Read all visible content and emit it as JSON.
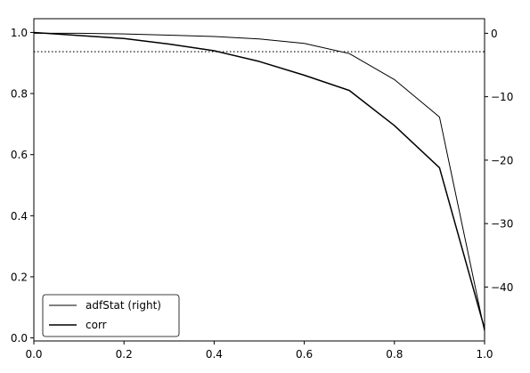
{
  "chart_data": {
    "type": "line",
    "x_axis": {
      "range": [
        0.0,
        1.0
      ],
      "ticks": [
        0.0,
        0.2,
        0.4,
        0.6,
        0.8,
        1.0
      ],
      "tick_labels": [
        "0.0",
        "0.2",
        "0.4",
        "0.6",
        "0.8",
        "1.0"
      ]
    },
    "y_left": {
      "range": [
        -0.01,
        1.045
      ],
      "ticks": [
        0.0,
        0.2,
        0.4,
        0.6,
        0.8,
        1.0
      ],
      "tick_labels": [
        "0.0",
        "0.2",
        "0.4",
        "0.6",
        "0.8",
        "1.0"
      ]
    },
    "y_right": {
      "range": [
        -48.5,
        2.3
      ],
      "ticks": [
        0,
        -10,
        -20,
        -30,
        -40
      ],
      "tick_labels": [
        "0",
        "−10",
        "−20",
        "−30",
        "−40"
      ]
    },
    "grid": false,
    "legend": {
      "position": "bottom-left",
      "entries": [
        "adfStat (right)",
        "corr"
      ]
    },
    "reference_line": {
      "axis": "right",
      "value": -2.9,
      "style": "dotted"
    },
    "series": [
      {
        "name": "adfStat (right)",
        "axis": "right",
        "line_width": 1,
        "x": [
          0.0,
          0.1,
          0.2,
          0.3,
          0.4,
          0.5,
          0.6,
          0.7,
          0.8,
          0.9,
          1.0
        ],
        "y": [
          0.0,
          0.0,
          -0.1,
          -0.3,
          -0.5,
          -0.9,
          -1.6,
          -3.2,
          -7.3,
          -13.2,
          -47.0
        ]
      },
      {
        "name": "corr",
        "axis": "left",
        "line_width": 1.5,
        "x": [
          0.0,
          0.1,
          0.2,
          0.3,
          0.4,
          0.5,
          0.6,
          0.7,
          0.8,
          0.9,
          1.0
        ],
        "y": [
          1.0,
          0.99,
          0.98,
          0.962,
          0.94,
          0.905,
          0.86,
          0.81,
          0.695,
          0.557,
          0.03
        ]
      }
    ]
  }
}
